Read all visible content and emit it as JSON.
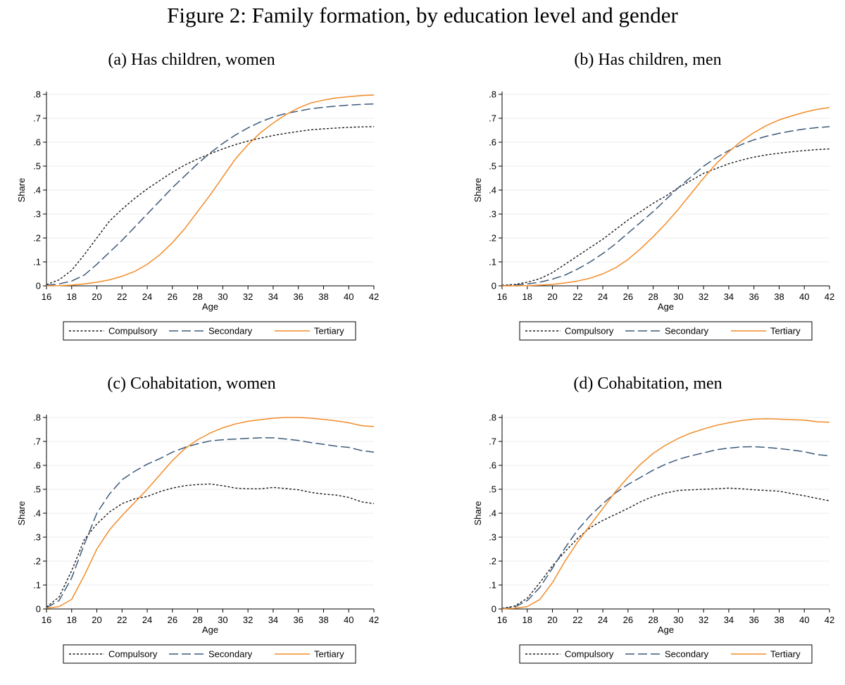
{
  "figure_title": "Figure 2:  Family formation, by education level and gender",
  "colors": {
    "compulsory": "#1a1a1a",
    "secondary": "#3d5a7a",
    "tertiary": "#f28c28",
    "grid": "#ececec",
    "axis": "#000000"
  },
  "chart_data": [
    {
      "type": "line",
      "title": "(a) Has children, women",
      "xlabel": "Age",
      "ylabel": "Share",
      "xlim": [
        16,
        42
      ],
      "ylim": [
        0,
        0.8
      ],
      "xticks": [
        "16",
        "18",
        "20",
        "22",
        "24",
        "26",
        "28",
        "30",
        "32",
        "34",
        "36",
        "38",
        "40",
        "42"
      ],
      "yticks": [
        "0",
        ".1",
        ".2",
        ".3",
        ".4",
        ".5",
        ".6",
        ".7",
        ".8"
      ],
      "legend": [
        "Compulsory",
        "Secondary",
        "Tertiary"
      ],
      "legend_position": "bottom",
      "x": [
        16,
        17,
        18,
        19,
        20,
        21,
        22,
        23,
        24,
        25,
        26,
        27,
        28,
        29,
        30,
        31,
        32,
        33,
        34,
        35,
        36,
        37,
        38,
        39,
        40,
        41,
        42
      ],
      "series": [
        {
          "name": "Compulsory",
          "style": "dotted",
          "values": [
            0.005,
            0.025,
            0.065,
            0.13,
            0.2,
            0.27,
            0.32,
            0.365,
            0.405,
            0.44,
            0.475,
            0.505,
            0.53,
            0.552,
            0.572,
            0.59,
            0.605,
            0.617,
            0.628,
            0.637,
            0.645,
            0.652,
            0.656,
            0.659,
            0.662,
            0.664,
            0.665
          ]
        },
        {
          "name": "Secondary",
          "style": "dashed",
          "values": [
            0.002,
            0.008,
            0.02,
            0.045,
            0.09,
            0.14,
            0.19,
            0.245,
            0.3,
            0.355,
            0.41,
            0.46,
            0.51,
            0.555,
            0.595,
            0.63,
            0.66,
            0.685,
            0.705,
            0.72,
            0.73,
            0.74,
            0.746,
            0.751,
            0.755,
            0.758,
            0.76
          ]
        },
        {
          "name": "Tertiary",
          "style": "solid",
          "values": [
            0.0,
            0.001,
            0.003,
            0.008,
            0.015,
            0.025,
            0.04,
            0.06,
            0.09,
            0.13,
            0.18,
            0.24,
            0.31,
            0.38,
            0.455,
            0.53,
            0.59,
            0.64,
            0.68,
            0.715,
            0.743,
            0.764,
            0.776,
            0.785,
            0.79,
            0.795,
            0.797
          ]
        }
      ]
    },
    {
      "type": "line",
      "title": "(b) Has children, men",
      "xlabel": "Age",
      "ylabel": "Share",
      "xlim": [
        16,
        42
      ],
      "ylim": [
        0,
        0.8
      ],
      "xticks": [
        "16",
        "18",
        "20",
        "22",
        "24",
        "26",
        "28",
        "30",
        "32",
        "34",
        "36",
        "38",
        "40",
        "42"
      ],
      "yticks": [
        "0",
        ".1",
        ".2",
        ".3",
        ".4",
        ".5",
        ".6",
        ".7",
        ".8"
      ],
      "legend": [
        "Compulsory",
        "Secondary",
        "Tertiary"
      ],
      "legend_position": "bottom",
      "x": [
        16,
        17,
        18,
        19,
        20,
        21,
        22,
        23,
        24,
        25,
        26,
        27,
        28,
        29,
        30,
        31,
        32,
        33,
        34,
        35,
        36,
        37,
        38,
        39,
        40,
        41,
        42
      ],
      "series": [
        {
          "name": "Compulsory",
          "style": "dotted",
          "values": [
            0.002,
            0.006,
            0.015,
            0.03,
            0.055,
            0.09,
            0.125,
            0.16,
            0.195,
            0.235,
            0.275,
            0.31,
            0.345,
            0.375,
            0.41,
            0.44,
            0.47,
            0.49,
            0.51,
            0.525,
            0.538,
            0.547,
            0.554,
            0.56,
            0.565,
            0.569,
            0.572
          ]
        },
        {
          "name": "Secondary",
          "style": "dashed",
          "values": [
            0.0,
            0.003,
            0.008,
            0.015,
            0.028,
            0.045,
            0.07,
            0.1,
            0.135,
            0.175,
            0.22,
            0.265,
            0.31,
            0.36,
            0.41,
            0.455,
            0.5,
            0.535,
            0.565,
            0.59,
            0.61,
            0.625,
            0.637,
            0.647,
            0.655,
            0.661,
            0.665
          ]
        },
        {
          "name": "Tertiary",
          "style": "solid",
          "values": [
            0.0,
            0.0,
            0.001,
            0.003,
            0.006,
            0.012,
            0.02,
            0.032,
            0.05,
            0.075,
            0.11,
            0.155,
            0.205,
            0.26,
            0.32,
            0.385,
            0.45,
            0.51,
            0.56,
            0.605,
            0.64,
            0.67,
            0.693,
            0.71,
            0.725,
            0.737,
            0.745
          ]
        }
      ]
    },
    {
      "type": "line",
      "title": "(c) Cohabitation, women",
      "xlabel": "Age",
      "ylabel": "Share",
      "xlim": [
        16,
        42
      ],
      "ylim": [
        0,
        0.8
      ],
      "xticks": [
        "16",
        "18",
        "20",
        "22",
        "24",
        "26",
        "28",
        "30",
        "32",
        "34",
        "36",
        "38",
        "40",
        "42"
      ],
      "yticks": [
        "0",
        ".1",
        ".2",
        ".3",
        ".4",
        ".5",
        ".6",
        ".7",
        ".8"
      ],
      "legend": [
        "Compulsory",
        "Secondary",
        "Tertiary"
      ],
      "legend_position": "bottom",
      "x": [
        16,
        17,
        18,
        19,
        20,
        21,
        22,
        23,
        24,
        25,
        26,
        27,
        28,
        29,
        30,
        31,
        32,
        33,
        34,
        35,
        36,
        37,
        38,
        39,
        40,
        41,
        42
      ],
      "series": [
        {
          "name": "Compulsory",
          "style": "dotted",
          "values": [
            0.008,
            0.05,
            0.16,
            0.29,
            0.355,
            0.405,
            0.44,
            0.46,
            0.47,
            0.49,
            0.505,
            0.515,
            0.52,
            0.522,
            0.515,
            0.505,
            0.502,
            0.502,
            0.508,
            0.503,
            0.498,
            0.487,
            0.48,
            0.476,
            0.466,
            0.448,
            0.44
          ]
        },
        {
          "name": "Secondary",
          "style": "dashed",
          "values": [
            0.005,
            0.035,
            0.13,
            0.27,
            0.4,
            0.48,
            0.54,
            0.575,
            0.605,
            0.628,
            0.655,
            0.675,
            0.69,
            0.702,
            0.707,
            0.71,
            0.713,
            0.715,
            0.715,
            0.71,
            0.704,
            0.695,
            0.688,
            0.68,
            0.675,
            0.662,
            0.655
          ]
        },
        {
          "name": "Tertiary",
          "style": "solid",
          "values": [
            0.003,
            0.01,
            0.04,
            0.14,
            0.25,
            0.33,
            0.39,
            0.445,
            0.5,
            0.56,
            0.62,
            0.67,
            0.707,
            0.735,
            0.757,
            0.773,
            0.784,
            0.791,
            0.797,
            0.8,
            0.8,
            0.797,
            0.792,
            0.786,
            0.778,
            0.766,
            0.762
          ]
        }
      ]
    },
    {
      "type": "line",
      "title": "(d) Cohabitation, men",
      "xlabel": "Age",
      "ylabel": "Share",
      "xlim": [
        16,
        42
      ],
      "ylim": [
        0,
        0.8
      ],
      "xticks": [
        "16",
        "18",
        "20",
        "22",
        "24",
        "26",
        "28",
        "30",
        "32",
        "34",
        "36",
        "38",
        "40",
        "42"
      ],
      "yticks": [
        "0",
        ".1",
        ".2",
        ".3",
        ".4",
        ".5",
        ".6",
        ".7",
        ".8"
      ],
      "legend": [
        "Compulsory",
        "Secondary",
        "Tertiary"
      ],
      "legend_position": "bottom",
      "x": [
        16,
        17,
        18,
        19,
        20,
        21,
        22,
        23,
        24,
        25,
        26,
        27,
        28,
        29,
        30,
        31,
        32,
        33,
        34,
        35,
        36,
        37,
        38,
        39,
        40,
        41,
        42
      ],
      "series": [
        {
          "name": "Compulsory",
          "style": "dotted",
          "values": [
            0.002,
            0.012,
            0.045,
            0.11,
            0.18,
            0.24,
            0.295,
            0.34,
            0.37,
            0.395,
            0.42,
            0.448,
            0.47,
            0.485,
            0.495,
            0.498,
            0.5,
            0.502,
            0.505,
            0.502,
            0.498,
            0.495,
            0.492,
            0.482,
            0.473,
            0.462,
            0.452
          ]
        },
        {
          "name": "Secondary",
          "style": "dashed",
          "values": [
            0.001,
            0.008,
            0.035,
            0.09,
            0.17,
            0.255,
            0.33,
            0.39,
            0.44,
            0.485,
            0.52,
            0.55,
            0.58,
            0.605,
            0.625,
            0.64,
            0.652,
            0.665,
            0.672,
            0.677,
            0.678,
            0.675,
            0.67,
            0.664,
            0.657,
            0.645,
            0.64
          ]
        },
        {
          "name": "Tertiary",
          "style": "solid",
          "values": [
            0.0,
            0.003,
            0.01,
            0.04,
            0.11,
            0.2,
            0.28,
            0.35,
            0.42,
            0.49,
            0.55,
            0.605,
            0.65,
            0.685,
            0.713,
            0.735,
            0.752,
            0.767,
            0.778,
            0.787,
            0.793,
            0.795,
            0.793,
            0.791,
            0.789,
            0.782,
            0.78
          ]
        }
      ]
    }
  ]
}
